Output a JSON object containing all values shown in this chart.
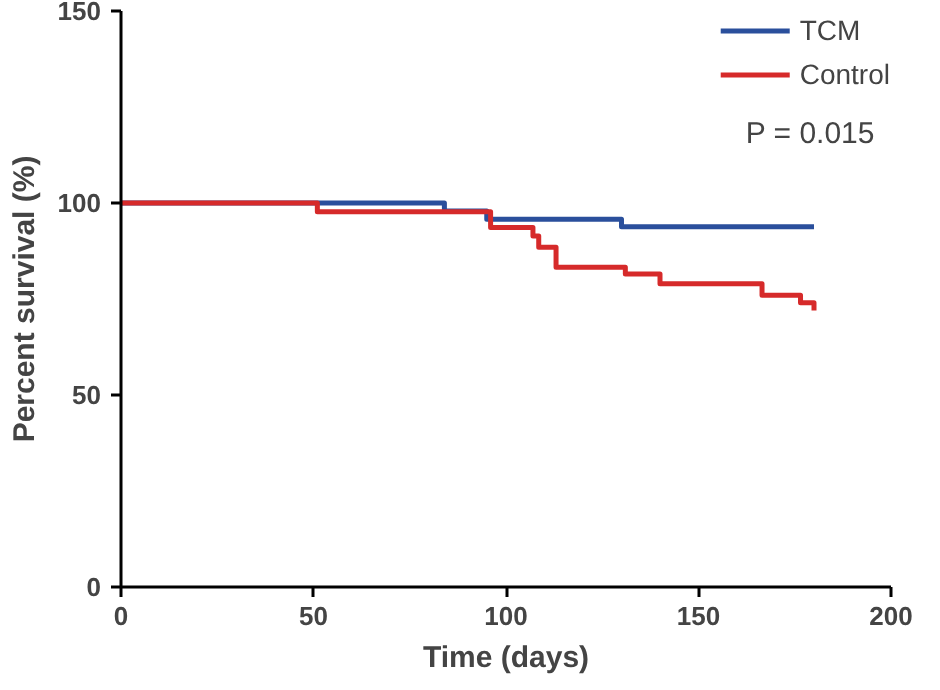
{
  "chart_data": {
    "type": "step",
    "xlabel": "Time (days)",
    "ylabel": "Percent survival (%)",
    "xlim": [
      0,
      200
    ],
    "ylim": [
      0,
      150
    ],
    "xticks": [
      0,
      50,
      100,
      150,
      200
    ],
    "yticks": [
      0,
      50,
      100,
      150
    ],
    "grid": false,
    "legend": "top right",
    "annotations": [
      "P = 0.015"
    ],
    "series": [
      {
        "name": "TCM",
        "color": "#2a4f9c",
        "x": [
          0,
          84,
          95,
          130,
          180
        ],
        "values": [
          100,
          97.9,
          95.8,
          93.8,
          93.8
        ]
      },
      {
        "name": "Control",
        "color": "#d62a2a",
        "x": [
          0,
          51,
          96,
          107,
          108.5,
          113,
          131,
          140,
          166.5,
          176.5,
          180
        ],
        "values": [
          100,
          97.7,
          93.6,
          91.4,
          88.5,
          83.3,
          81.5,
          79,
          76,
          74,
          72
        ]
      }
    ]
  }
}
